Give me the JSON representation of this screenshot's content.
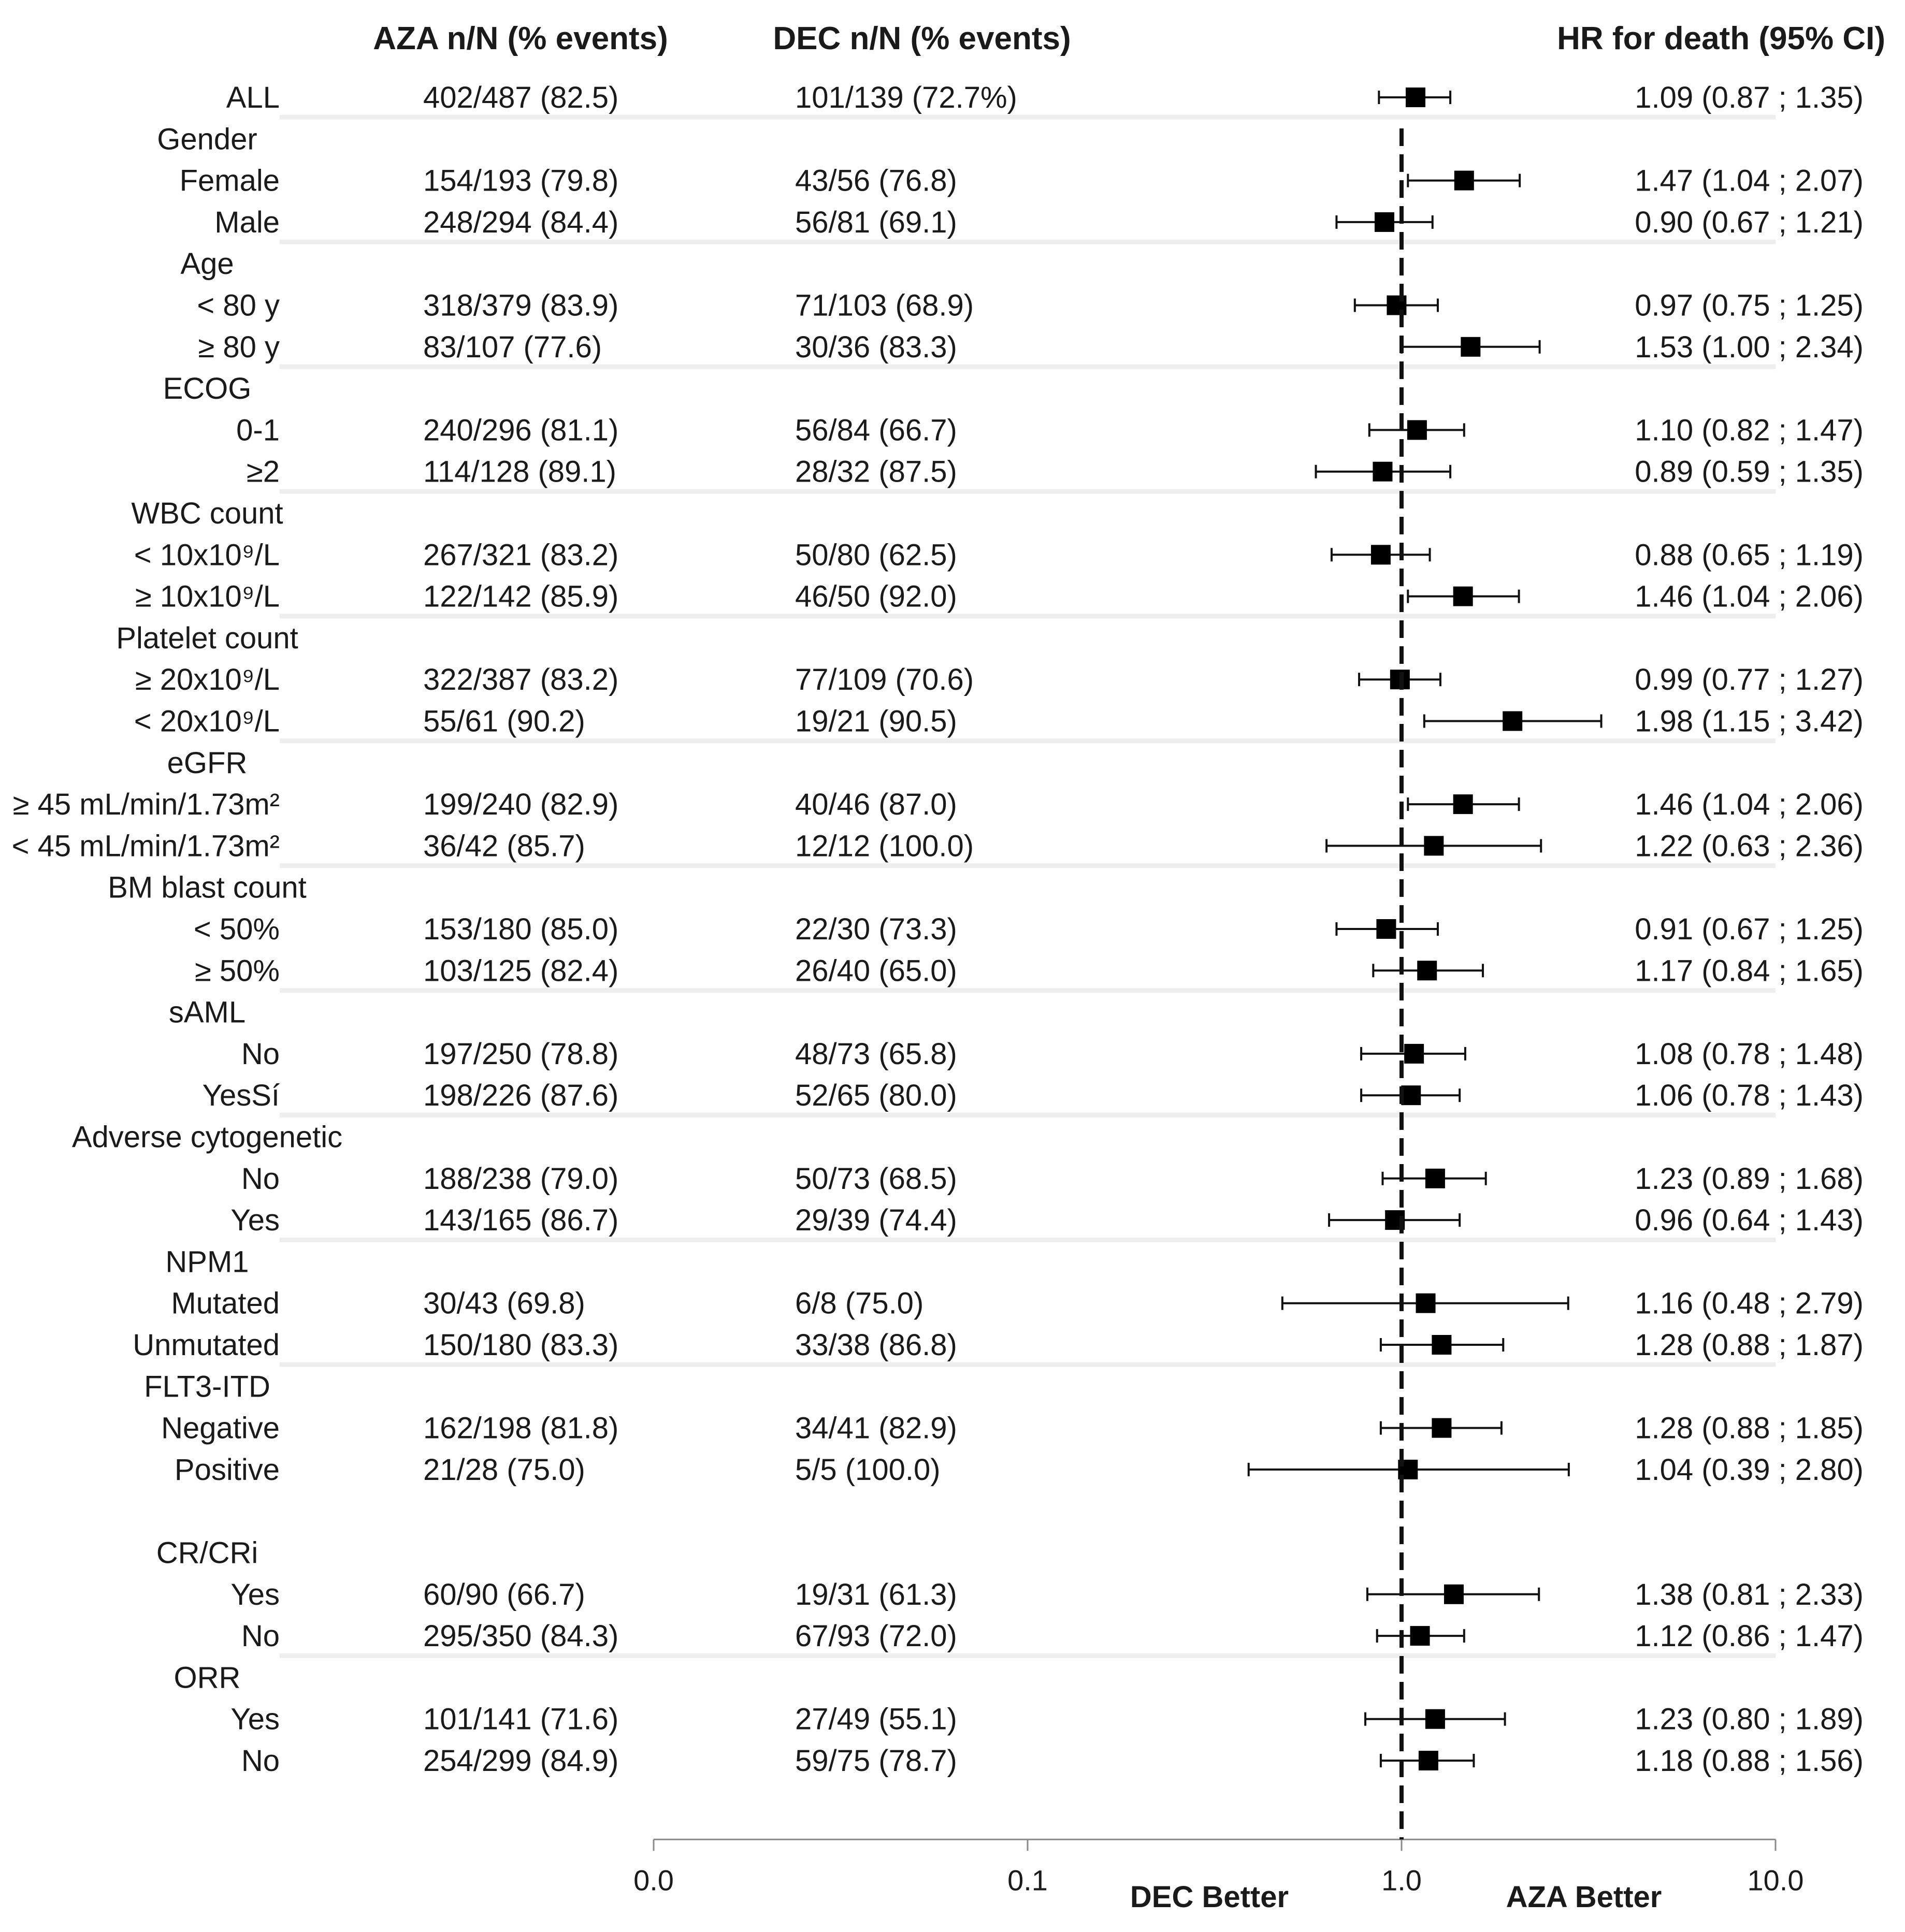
{
  "chart_data": {
    "type": "forest",
    "headers": {
      "aza": "AZA n/N (% events)",
      "dec": "DEC n/N (% events)",
      "hr": "HR for death (95% CI)"
    },
    "x_scale": "log",
    "xlim": [
      0.01,
      10
    ],
    "reference_value": 1.0,
    "x_ticks": [
      {
        "value": 0.01,
        "label": "0.0"
      },
      {
        "value": 0.1,
        "label": "0.1"
      },
      {
        "value": 1,
        "label": "1.0"
      },
      {
        "value": 10,
        "label": "10.0"
      }
    ],
    "footer": {
      "left": "DEC Better",
      "right": "AZA Better"
    },
    "rows": [
      {
        "label": "ALL",
        "row": 0,
        "indent": 1,
        "aza": "402/487 (82.5)",
        "dec": "101/139 (72.7%)",
        "hr": 1.09,
        "lo": 0.87,
        "hi": 1.35,
        "ci_text": "1.09 (0.87 ; 1.35)"
      },
      {
        "label": "Gender",
        "row": 1,
        "header": true,
        "sep": true
      },
      {
        "label": "Female",
        "row": 2,
        "indent": 1,
        "aza": "154/193 (79.8)",
        "dec": "43/56 (76.8)",
        "hr": 1.47,
        "lo": 1.04,
        "hi": 2.07,
        "ci_text": "1.47 (1.04 ; 2.07)"
      },
      {
        "label": "Male",
        "row": 3,
        "indent": 1,
        "aza": "248/294 (84.4)",
        "dec": "56/81 (69.1)",
        "hr": 0.9,
        "lo": 0.67,
        "hi": 1.21,
        "ci_text": "0.90 (0.67 ; 1.21)"
      },
      {
        "label": "Age",
        "row": 4,
        "header": true,
        "sep": true
      },
      {
        "label": "< 80 y",
        "row": 5,
        "indent": 1,
        "aza": "318/379 (83.9)",
        "dec": "71/103 (68.9)",
        "hr": 0.97,
        "lo": 0.75,
        "hi": 1.25,
        "ci_text": "0.97 (0.75 ; 1.25)"
      },
      {
        "label": "≥ 80 y",
        "row": 6,
        "indent": 1,
        "aza": "83/107 (77.6)",
        "dec": "30/36 (83.3)",
        "hr": 1.53,
        "lo": 1.0,
        "hi": 2.34,
        "ci_text": "1.53 (1.00 ; 2.34)"
      },
      {
        "label": "ECOG",
        "row": 7,
        "header": true,
        "sep": true
      },
      {
        "label": "0-1",
        "row": 8,
        "indent": 1,
        "aza": "240/296 (81.1)",
        "dec": "56/84 (66.7)",
        "hr": 1.1,
        "lo": 0.82,
        "hi": 1.47,
        "ci_text": "1.10 (0.82 ; 1.47)"
      },
      {
        "label": "≥2",
        "row": 9,
        "indent": 1,
        "aza": "114/128 (89.1)",
        "dec": "28/32 (87.5)",
        "hr": 0.89,
        "lo": 0.59,
        "hi": 1.35,
        "ci_text": "0.89 (0.59 ; 1.35)"
      },
      {
        "label": "WBC count",
        "row": 10,
        "header": true,
        "sep": true
      },
      {
        "label": "< 10x10⁹/L",
        "row": 11,
        "indent": 1,
        "aza": "267/321 (83.2)",
        "dec": "50/80 (62.5)",
        "hr": 0.88,
        "lo": 0.65,
        "hi": 1.19,
        "ci_text": "0.88 (0.65 ; 1.19)"
      },
      {
        "label": "≥ 10x10⁹/L",
        "row": 12,
        "indent": 1,
        "aza": "122/142 (85.9)",
        "dec": "46/50 (92.0)",
        "hr": 1.46,
        "lo": 1.04,
        "hi": 2.06,
        "ci_text": "1.46 (1.04 ; 2.06)"
      },
      {
        "label": "Platelet count",
        "row": 13,
        "header": true,
        "sep": true
      },
      {
        "label": "≥ 20x10⁹/L",
        "row": 14,
        "indent": 1,
        "aza": "322/387 (83.2)",
        "dec": "77/109 (70.6)",
        "hr": 0.99,
        "lo": 0.77,
        "hi": 1.27,
        "ci_text": "0.99 (0.77 ; 1.27)"
      },
      {
        "label": "< 20x10⁹/L",
        "row": 15,
        "indent": 1,
        "aza": "55/61 (90.2)",
        "dec": "19/21 (90.5)",
        "hr": 1.98,
        "lo": 1.15,
        "hi": 3.42,
        "ci_text": "1.98 (1.15 ; 3.42)"
      },
      {
        "label": "eGFR",
        "row": 16,
        "header": true,
        "sep": true
      },
      {
        "label": "≥ 45 mL/min/1.73m²",
        "row": 17,
        "indent": 1,
        "aza": "199/240 (82.9)",
        "dec": "40/46 (87.0)",
        "hr": 1.46,
        "lo": 1.04,
        "hi": 2.06,
        "ci_text": "1.46 (1.04 ; 2.06)"
      },
      {
        "label": "< 45 mL/min/1.73m²",
        "row": 18,
        "indent": 1,
        "aza": "36/42 (85.7)",
        "dec": "12/12 (100.0)",
        "hr": 1.22,
        "lo": 0.63,
        "hi": 2.36,
        "ci_text": "1.22 (0.63 ; 2.36)"
      },
      {
        "label": "BM blast count",
        "row": 19,
        "header": true,
        "sep": true
      },
      {
        "label": "< 50%",
        "row": 20,
        "indent": 1,
        "aza": "153/180 (85.0)",
        "dec": "22/30 (73.3)",
        "hr": 0.91,
        "lo": 0.67,
        "hi": 1.25,
        "ci_text": "0.91 (0.67 ; 1.25)"
      },
      {
        "label": "≥ 50%",
        "row": 21,
        "indent": 1,
        "aza": "103/125 (82.4)",
        "dec": "26/40 (65.0)",
        "hr": 1.17,
        "lo": 0.84,
        "hi": 1.65,
        "ci_text": "1.17 (0.84 ; 1.65)"
      },
      {
        "label": "sAML",
        "row": 22,
        "header": true,
        "sep": true
      },
      {
        "label": "No",
        "row": 23,
        "indent": 1,
        "aza": "197/250 (78.8)",
        "dec": "48/73 (65.8)",
        "hr": 1.08,
        "lo": 0.78,
        "hi": 1.48,
        "ci_text": "1.08 (0.78 ; 1.48)"
      },
      {
        "label": "YesSí",
        "row": 24,
        "indent": 1,
        "aza": "198/226 (87.6)",
        "dec": "52/65 (80.0)",
        "hr": 1.06,
        "lo": 0.78,
        "hi": 1.43,
        "ci_text": "1.06 (0.78 ; 1.43)"
      },
      {
        "label": "Adverse cytogenetic",
        "row": 25,
        "header": true,
        "sep": true
      },
      {
        "label": "No",
        "row": 26,
        "indent": 1,
        "aza": "188/238 (79.0)",
        "dec": "50/73 (68.5)",
        "hr": 1.23,
        "lo": 0.89,
        "hi": 1.68,
        "ci_text": "1.23 (0.89 ; 1.68)"
      },
      {
        "label": "Yes",
        "row": 27,
        "indent": 1,
        "aza": "143/165 (86.7)",
        "dec": "29/39 (74.4)",
        "hr": 0.96,
        "lo": 0.64,
        "hi": 1.43,
        "ci_text": "0.96 (0.64 ; 1.43)"
      },
      {
        "label": "NPM1",
        "row": 28,
        "header": true,
        "sep": true
      },
      {
        "label": "Mutated",
        "row": 29,
        "indent": 1,
        "aza": "30/43 (69.8)",
        "dec": "6/8 (75.0)",
        "hr": 1.16,
        "lo": 0.48,
        "hi": 2.79,
        "ci_text": "1.16 (0.48 ; 2.79)"
      },
      {
        "label": "Unmutated",
        "row": 30,
        "indent": 1,
        "aza": "150/180 (83.3)",
        "dec": "33/38 (86.8)",
        "hr": 1.28,
        "lo": 0.88,
        "hi": 1.87,
        "ci_text": "1.28 (0.88 ; 1.87)"
      },
      {
        "label": "FLT3-ITD",
        "row": 31,
        "header": true,
        "sep": true
      },
      {
        "label": "Negative",
        "row": 32,
        "indent": 1,
        "aza": "162/198 (81.8)",
        "dec": "34/41 (82.9)",
        "hr": 1.28,
        "lo": 0.88,
        "hi": 1.85,
        "ci_text": "1.28 (0.88 ; 1.85)"
      },
      {
        "label": "Positive",
        "row": 33,
        "indent": 1,
        "aza": "21/28 (75.0)",
        "dec": "5/5 (100.0)",
        "hr": 1.04,
        "lo": 0.39,
        "hi": 2.8,
        "ci_text": "1.04 (0.39 ; 2.80)"
      },
      {
        "label": "CR/CRi",
        "row": 35,
        "header": true,
        "sep": false
      },
      {
        "label": "Yes",
        "row": 36,
        "indent": 1,
        "aza": "60/90 (66.7)",
        "dec": "19/31 (61.3)",
        "hr": 1.38,
        "lo": 0.81,
        "hi": 2.33,
        "ci_text": "1.38 (0.81 ; 2.33)"
      },
      {
        "label": "No",
        "row": 37,
        "indent": 1,
        "aza": "295/350 (84.3)",
        "dec": "67/93 (72.0)",
        "hr": 1.12,
        "lo": 0.86,
        "hi": 1.47,
        "ci_text": "1.12 (0.86 ; 1.47)"
      },
      {
        "label": "ORR",
        "row": 38,
        "header": true,
        "sep": true
      },
      {
        "label": "Yes",
        "row": 39,
        "indent": 1,
        "aza": "101/141 (71.6)",
        "dec": "27/49 (55.1)",
        "hr": 1.23,
        "lo": 0.8,
        "hi": 1.89,
        "ci_text": "1.23 (0.80 ; 1.89)"
      },
      {
        "label": "No",
        "row": 40,
        "indent": 1,
        "aza": "254/299 (84.9)",
        "dec": "59/75 (78.7)",
        "hr": 1.18,
        "lo": 0.88,
        "hi": 1.56,
        "ci_text": "1.18 (0.88 ; 1.56)"
      }
    ]
  }
}
